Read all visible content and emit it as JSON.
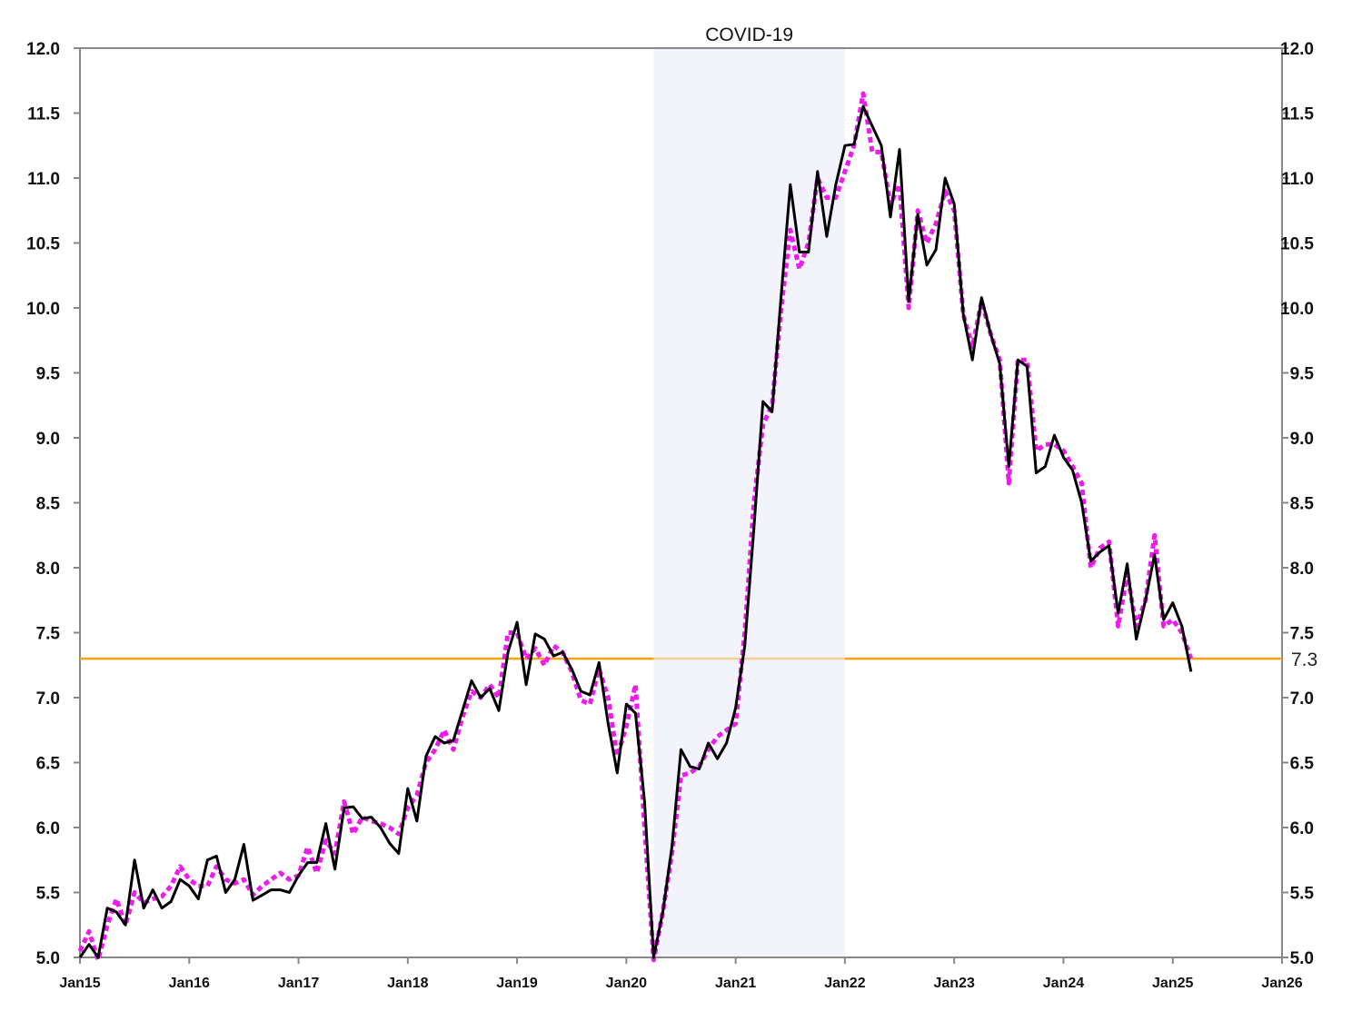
{
  "chart_data": {
    "type": "line",
    "title": "",
    "xlabel": "",
    "ylabel": "",
    "ylim": [
      5.0,
      12.0
    ],
    "xlim": [
      "2015-01",
      "2026-01"
    ],
    "grid": false,
    "legend": "none",
    "y_ticks": [
      "5.0",
      "5.5",
      "6.0",
      "6.5",
      "7.0",
      "7.5",
      "8.0",
      "8.5",
      "9.0",
      "9.5",
      "10.0",
      "10.5",
      "11.0",
      "11.5",
      "12.0"
    ],
    "x_ticks": [
      {
        "label": "Jan15",
        "date": "2015-01"
      },
      {
        "label": "Jan16",
        "date": "2016-01"
      },
      {
        "label": "Jan17",
        "date": "2017-01"
      },
      {
        "label": "Jan18",
        "date": "2018-01"
      },
      {
        "label": "Jan19",
        "date": "2019-01"
      },
      {
        "label": "Jan20",
        "date": "2020-01"
      },
      {
        "label": "Jan21",
        "date": "2021-01"
      },
      {
        "label": "Jan22",
        "date": "2022-01"
      },
      {
        "label": "Jan23",
        "date": "2023-01"
      },
      {
        "label": "Jan24",
        "date": "2024-01"
      },
      {
        "label": "Jan25",
        "date": "2025-01"
      },
      {
        "label": "Jan26",
        "date": "2026-01"
      }
    ],
    "shaded_region": {
      "label": "COVID-19",
      "start": "2020-04",
      "end": "2022-01",
      "color": "#f3f3fc"
    },
    "reference_line": {
      "value": 7.3,
      "label": "7.3",
      "color": "#f2a417"
    },
    "start": "2015-01",
    "series": [
      {
        "style": "solid",
        "color": "#000000",
        "values": [
          5.0,
          5.1,
          5.0,
          5.38,
          5.35,
          5.25,
          5.75,
          5.38,
          5.52,
          5.38,
          5.43,
          5.6,
          5.55,
          5.45,
          5.75,
          5.78,
          5.5,
          5.6,
          5.87,
          5.44,
          5.48,
          5.52,
          5.52,
          5.5,
          5.63,
          5.73,
          5.73,
          6.03,
          5.68,
          6.15,
          6.16,
          6.07,
          6.08,
          6.0,
          5.88,
          5.8,
          6.3,
          6.05,
          6.55,
          6.7,
          6.65,
          6.67,
          6.9,
          7.13,
          7.0,
          7.07,
          6.9,
          7.35,
          7.58,
          7.1,
          7.49,
          7.45,
          7.32,
          7.35,
          7.22,
          7.05,
          7.02,
          7.27,
          6.8,
          6.42,
          6.95,
          6.88,
          6.2,
          5.0,
          5.35,
          5.85,
          6.6,
          6.47,
          6.45,
          6.65,
          6.53,
          6.65,
          6.92,
          7.4,
          8.3,
          9.28,
          9.2,
          10.1,
          10.95,
          10.43,
          10.43,
          11.05,
          10.55,
          10.95,
          11.25,
          11.26,
          11.55,
          11.4,
          11.25,
          10.7,
          11.22,
          10.05,
          10.72,
          10.33,
          10.45,
          11.0,
          10.8,
          9.95,
          9.6,
          10.08,
          9.8,
          9.57,
          8.78,
          9.6,
          9.55,
          8.73,
          8.78,
          9.02,
          8.85,
          8.75,
          8.5,
          8.05,
          8.12,
          8.17,
          7.65,
          8.03,
          7.45,
          7.75,
          8.1,
          7.6,
          7.73,
          7.55,
          7.2
        ]
      },
      {
        "style": "dotted",
        "color": "#ee1bee",
        "values": [
          5.05,
          5.2,
          4.98,
          5.25,
          5.45,
          5.25,
          5.5,
          5.42,
          5.45,
          5.47,
          5.55,
          5.7,
          5.6,
          5.55,
          5.55,
          5.7,
          5.6,
          5.57,
          5.6,
          5.48,
          5.55,
          5.6,
          5.65,
          5.6,
          5.63,
          5.85,
          5.65,
          5.9,
          5.8,
          6.2,
          5.95,
          6.08,
          6.05,
          6.03,
          6.0,
          5.95,
          6.15,
          6.25,
          6.5,
          6.6,
          6.75,
          6.6,
          6.85,
          7.05,
          7.0,
          7.1,
          7.0,
          7.5,
          7.5,
          7.3,
          7.38,
          7.25,
          7.4,
          7.35,
          7.2,
          6.98,
          6.95,
          7.22,
          7.0,
          6.55,
          6.78,
          7.1,
          6.0,
          4.98,
          5.35,
          5.8,
          6.4,
          6.42,
          6.47,
          6.6,
          6.7,
          6.75,
          6.8,
          7.5,
          8.5,
          9.1,
          9.25,
          10.0,
          10.6,
          10.3,
          10.5,
          11.0,
          10.85,
          10.85,
          11.05,
          11.25,
          11.65,
          11.2,
          11.2,
          10.8,
          10.95,
          10.0,
          10.75,
          10.5,
          10.65,
          10.9,
          10.75,
          9.95,
          9.7,
          10.05,
          9.8,
          9.6,
          8.65,
          9.6,
          9.6,
          8.9,
          8.95,
          8.95,
          8.9,
          8.78,
          8.65,
          8.0,
          8.15,
          8.2,
          7.55,
          7.95,
          7.55,
          7.75,
          8.25,
          7.55,
          7.6,
          7.5,
          7.3
        ]
      }
    ]
  }
}
